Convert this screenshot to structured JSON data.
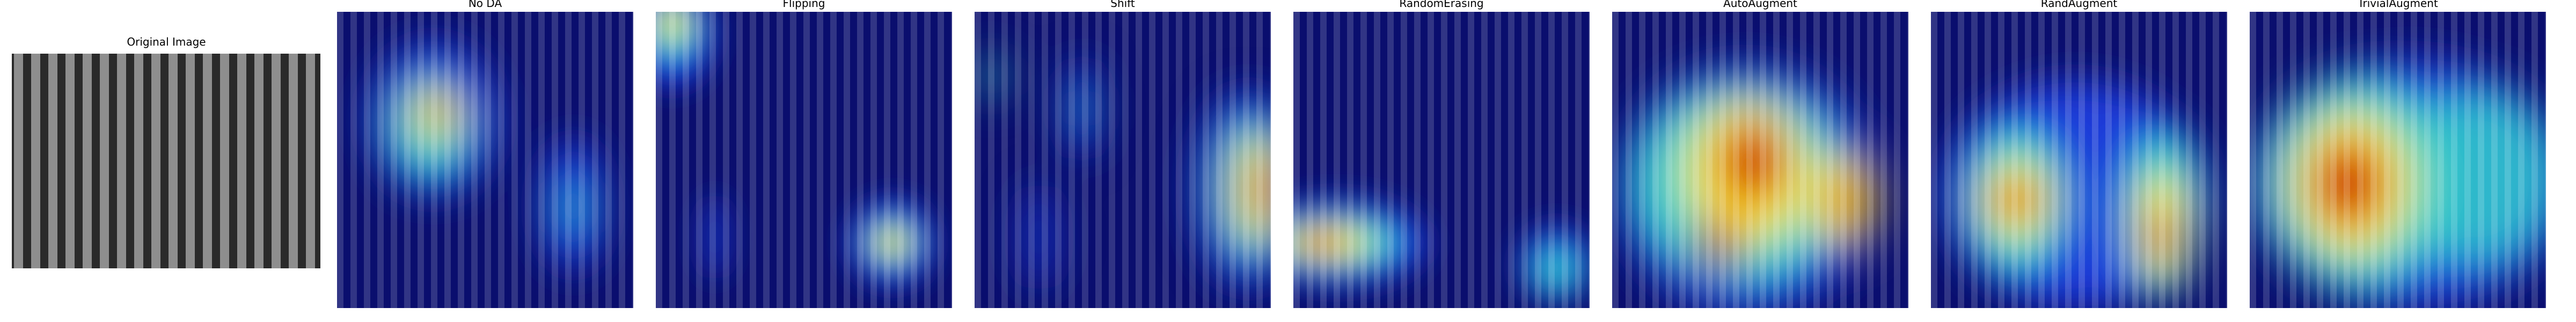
{
  "figure": {
    "panels": [
      {
        "title": "Original Image",
        "kind": "original"
      },
      {
        "title": "No DA",
        "kind": "heatmap"
      },
      {
        "title": "Flipping",
        "kind": "heatmap"
      },
      {
        "title": "Shift",
        "kind": "heatmap"
      },
      {
        "title": "RandomErasing",
        "kind": "heatmap"
      },
      {
        "title": "AutoAugment",
        "kind": "heatmap"
      },
      {
        "title": "RandAugment",
        "kind": "heatmap"
      },
      {
        "title": "TrivialAugment",
        "kind": "heatmap"
      }
    ],
    "colormap": {
      "cold": "#0a0e6e",
      "cool": "#1a3ad9",
      "mid": "#35d6c8",
      "warm": "#ffe81c",
      "hot": "#cc0f00"
    },
    "stripe_colors": {
      "light": "#8e8e8e",
      "dark": "#2a2a2a"
    }
  }
}
